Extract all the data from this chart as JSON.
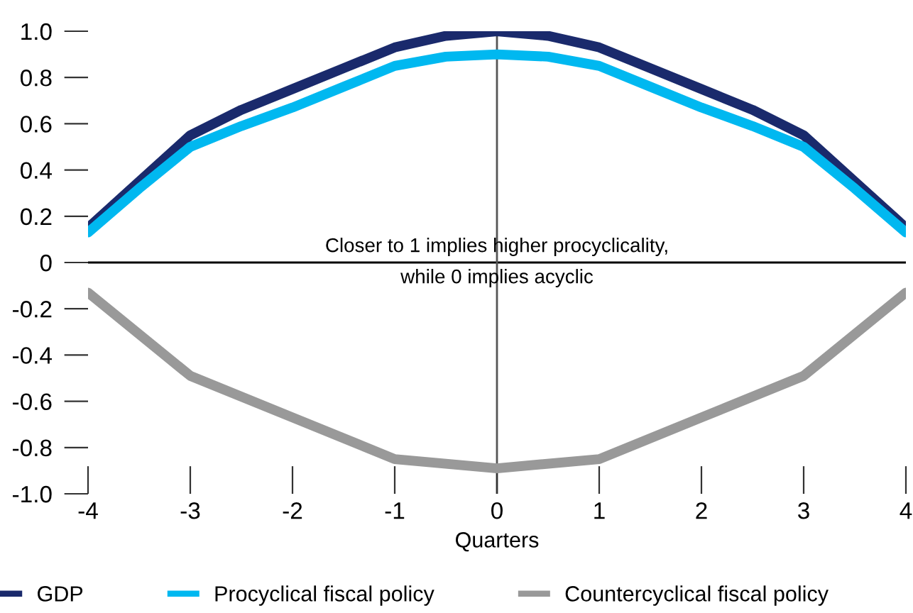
{
  "chart_data": {
    "type": "line",
    "xlabel": "Quarters",
    "x": [
      -4,
      -3.5,
      -3,
      -2.5,
      -2,
      -1.5,
      -1,
      -0.5,
      0,
      0.5,
      1,
      1.5,
      2,
      2.5,
      3,
      3.5,
      4
    ],
    "series": [
      {
        "name": "GDP",
        "color": "#1a2a6c",
        "values": [
          0.15,
          0.35,
          0.55,
          0.66,
          0.75,
          0.84,
          0.93,
          0.98,
          1.0,
          0.98,
          0.93,
          0.84,
          0.75,
          0.66,
          0.55,
          0.35,
          0.15
        ]
      },
      {
        "name": "Procyclical fiscal policy",
        "color": "#00b8f0",
        "values": [
          0.13,
          0.32,
          0.5,
          0.59,
          0.67,
          0.76,
          0.85,
          0.89,
          0.9,
          0.89,
          0.85,
          0.76,
          0.67,
          0.59,
          0.5,
          0.32,
          0.13
        ]
      },
      {
        "name": "Countercyclical fiscal policy",
        "color": "#999999",
        "x": [
          -4,
          -3,
          -2,
          -1,
          0,
          1,
          2,
          3,
          4
        ],
        "values": [
          -0.13,
          -0.49,
          -0.67,
          -0.85,
          -0.89,
          -0.85,
          -0.67,
          -0.49,
          -0.13
        ]
      }
    ],
    "xlim": [
      -4,
      4
    ],
    "ylim": [
      -1.0,
      1.0
    ],
    "xticks": [
      -4,
      -3,
      -2,
      -1,
      0,
      1,
      2,
      3,
      4
    ],
    "yticks": [
      {
        "value": -1.0,
        "label": "-1.0"
      },
      {
        "value": -0.8,
        "label": "-0.8"
      },
      {
        "value": -0.6,
        "label": "-0.6"
      },
      {
        "value": -0.4,
        "label": "-0.4"
      },
      {
        "value": -0.2,
        "label": "-0.2"
      },
      0,
      {
        "value": 0.2,
        "label": "0.2"
      },
      {
        "value": 0.4,
        "label": "0.4"
      },
      {
        "value": 0.6,
        "label": "0.6"
      },
      {
        "value": 0.8,
        "label": "0.8"
      },
      {
        "value": 1.0,
        "label": "1.0"
      }
    ],
    "ref_lines": [
      {
        "axis": "y",
        "value": 0,
        "color": "#000000"
      },
      {
        "axis": "x",
        "value": 0,
        "color": "#555555"
      }
    ],
    "annotations": [
      {
        "text": "Closer to 1 implies higher procyclicality,\nwhile 0 implies acyclic",
        "x": 0,
        "y": 0
      }
    ],
    "grid": false,
    "legend": "bottom",
    "line_style": "solid",
    "marker": "none"
  }
}
